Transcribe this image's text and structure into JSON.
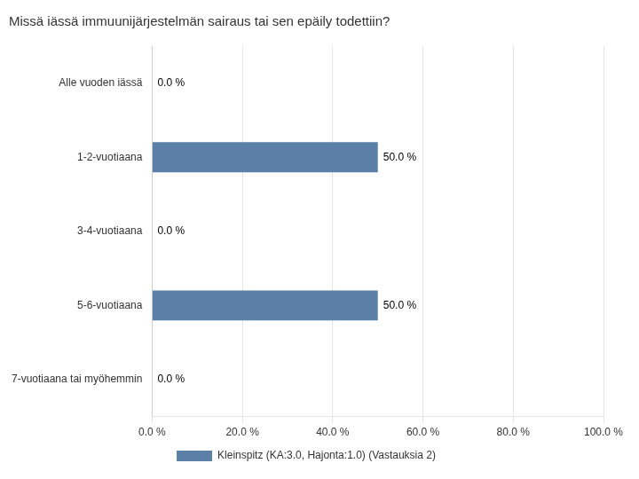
{
  "chart_data": {
    "type": "bar",
    "orientation": "horizontal",
    "title": "Missä iässä immuunijärjestelmän sairaus tai sen epäily todettiin?",
    "categories": [
      "Alle vuoden iässä",
      "1-2-vuotiaana",
      "3-4-vuotiaana",
      "5-6-vuotiaana",
      "7-vuotiaana tai myöhemmin"
    ],
    "series": [
      {
        "name": "Kleinspitz (KA:3.0, Hajonta:1.0) (Vastauksia 2)",
        "color": "#5b7fa6",
        "values": [
          0.0,
          50.0,
          0.0,
          50.0,
          0.0
        ],
        "value_labels": [
          "0.0 %",
          "50.0 %",
          "0.0 %",
          "50.0 %",
          "0.0 %"
        ]
      }
    ],
    "xlim": [
      0,
      100
    ],
    "xticks": [
      {
        "value": 0,
        "label": "0.0 %"
      },
      {
        "value": 20,
        "label": "20.0 %"
      },
      {
        "value": 40,
        "label": "40.0 %"
      },
      {
        "value": 60,
        "label": "60.0 %"
      },
      {
        "value": 80,
        "label": "80.0 %"
      },
      {
        "value": 100,
        "label": "100.0 %"
      }
    ],
    "grid": true,
    "legend": "bottom",
    "data_labels": true
  }
}
